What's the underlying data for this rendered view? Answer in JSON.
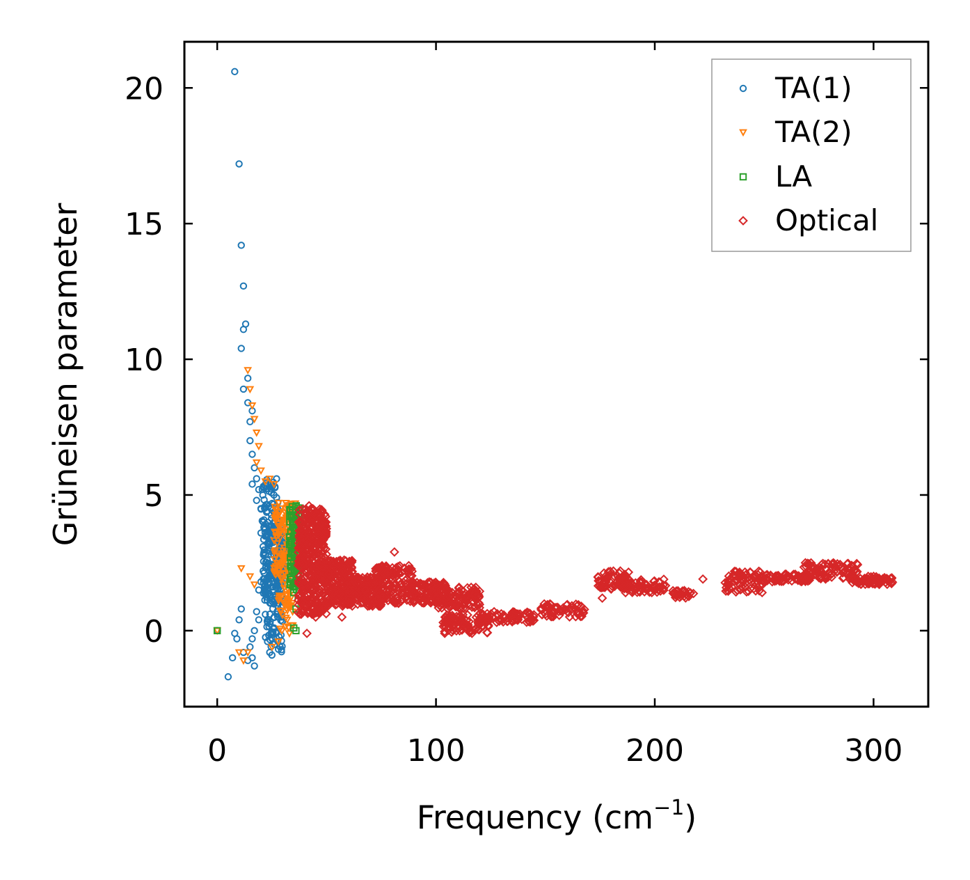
{
  "chart_data": {
    "type": "scatter",
    "title": "",
    "xlabel_main": "Frequency (cm",
    "xlabel_sup": "−1",
    "xlabel_end": ")",
    "ylabel": "Grüneisen parameter",
    "xlim": [
      -15,
      325
    ],
    "ylim": [
      -2.8,
      21.7
    ],
    "x_ticks": [
      0,
      100,
      200,
      300
    ],
    "y_ticks": [
      0,
      5,
      10,
      15,
      20
    ],
    "x_tick_labels": [
      "0",
      "100",
      "200",
      "300"
    ],
    "y_tick_labels": [
      "0",
      "5",
      "10",
      "15",
      "20"
    ],
    "legend_position": "top-right",
    "series": [
      {
        "name": "TA(1)",
        "color": "#1f77b4",
        "marker": "circle",
        "points": [
          [
            0,
            0
          ],
          [
            5,
            -1.7
          ],
          [
            8,
            20.6
          ],
          [
            10,
            17.2
          ],
          [
            11,
            14.2
          ],
          [
            12,
            12.7
          ],
          [
            13,
            11.3
          ],
          [
            12,
            11.1
          ],
          [
            11,
            10.4
          ],
          [
            12,
            8.9
          ],
          [
            14,
            9.3
          ],
          [
            14,
            8.4
          ],
          [
            15,
            7.7
          ],
          [
            16,
            8.1
          ],
          [
            15,
            7.0
          ],
          [
            16,
            6.5
          ],
          [
            17,
            6.0
          ],
          [
            16,
            5.4
          ],
          [
            18,
            5.6
          ],
          [
            19,
            5.2
          ],
          [
            18,
            4.8
          ],
          [
            20,
            4.5
          ],
          [
            21,
            4.0
          ],
          [
            20,
            3.6
          ],
          [
            21,
            3.1
          ],
          [
            22,
            2.8
          ],
          [
            21,
            2.2
          ],
          [
            20,
            1.8
          ],
          [
            19,
            1.5
          ],
          [
            18,
            0.7
          ],
          [
            19,
            0.4
          ],
          [
            17,
            0.0
          ],
          [
            16,
            -0.3
          ],
          [
            15,
            -0.6
          ],
          [
            16,
            -1.0
          ],
          [
            17,
            -1.3
          ],
          [
            14,
            -1.1
          ],
          [
            12,
            -0.8
          ],
          [
            9,
            -0.3
          ],
          [
            7,
            -1.0
          ],
          [
            8,
            -0.1
          ],
          [
            10,
            0.4
          ],
          [
            11,
            0.8
          ],
          [
            22,
            0.6
          ],
          [
            23,
            0.3
          ],
          [
            23,
            -0.4
          ],
          [
            24,
            -0.8
          ],
          [
            25,
            -0.9
          ],
          [
            26,
            0.1
          ],
          [
            26,
            0.5
          ]
        ],
        "dense_regions": [
          {
            "x": [
              21,
              31
            ],
            "y": [
              1.0,
              3.8
            ],
            "n": 220
          },
          {
            "x": [
              20,
              28
            ],
            "y": [
              3.8,
              5.6
            ],
            "n": 60
          },
          {
            "x": [
              22,
              30
            ],
            "y": [
              -0.8,
              1.0
            ],
            "n": 50
          }
        ]
      },
      {
        "name": "TA(2)",
        "color": "#ff7f0e",
        "marker": "triangle-down",
        "points": [
          [
            0,
            0
          ],
          [
            14,
            9.6
          ],
          [
            15,
            8.9
          ],
          [
            16,
            8.3
          ],
          [
            17,
            7.8
          ],
          [
            18,
            7.3
          ],
          [
            19,
            6.8
          ],
          [
            18,
            6.2
          ],
          [
            20,
            5.9
          ],
          [
            22,
            5.5
          ],
          [
            24,
            5.6
          ],
          [
            26,
            5.4
          ],
          [
            11,
            2.3
          ],
          [
            15,
            2.0
          ],
          [
            17,
            1.7
          ],
          [
            10,
            -0.8
          ],
          [
            12,
            -1.1
          ],
          [
            14,
            -0.8
          ],
          [
            25,
            -0.6
          ],
          [
            28,
            -0.4
          ],
          [
            33,
            -0.1
          ],
          [
            34,
            0.2
          ]
        ],
        "dense_regions": [
          {
            "x": [
              26,
              36
            ],
            "y": [
              2.0,
              4.8
            ],
            "n": 140
          },
          {
            "x": [
              28,
              35
            ],
            "y": [
              0.0,
              2.0
            ],
            "n": 40
          }
        ]
      },
      {
        "name": "LA",
        "color": "#2ca02c",
        "marker": "square",
        "points": [
          [
            0,
            0
          ],
          [
            35,
            0.1
          ],
          [
            36,
            0.0
          ],
          [
            36,
            0.8
          ],
          [
            35,
            1.4
          ],
          [
            37,
            1.3
          ]
        ],
        "dense_regions": [
          {
            "x": [
              33,
              38
            ],
            "y": [
              1.5,
              4.7
            ],
            "n": 110
          }
        ]
      },
      {
        "name": "Optical",
        "color": "#d62728",
        "marker": "diamond",
        "points": [
          [
            81,
            2.9
          ],
          [
            104,
            -0.1
          ],
          [
            176,
            1.2
          ],
          [
            222,
            1.9
          ],
          [
            247,
            1.6
          ],
          [
            289,
            1.9
          ],
          [
            41,
            -0.1
          ],
          [
            45,
            0.5
          ],
          [
            42,
            4.6
          ],
          [
            57,
            0.5
          ]
        ],
        "dense_regions": [
          {
            "x": [
              37,
              50
            ],
            "y": [
              0.6,
              4.5
            ],
            "n": 450
          },
          {
            "x": [
              50,
              62
            ],
            "y": [
              0.9,
              2.6
            ],
            "n": 220
          },
          {
            "x": [
              60,
              75
            ],
            "y": [
              0.9,
              2.0
            ],
            "n": 150
          },
          {
            "x": [
              72,
              90
            ],
            "y": [
              1.0,
              2.4
            ],
            "n": 160
          },
          {
            "x": [
              88,
              105
            ],
            "y": [
              1.0,
              1.8
            ],
            "n": 110
          },
          {
            "x": [
              100,
              120
            ],
            "y": [
              0.8,
              1.6
            ],
            "n": 110
          },
          {
            "x": [
              103,
              125
            ],
            "y": [
              -0.1,
              0.6
            ],
            "n": 90
          },
          {
            "x": [
              120,
              145
            ],
            "y": [
              0.3,
              0.7
            ],
            "n": 80
          },
          {
            "x": [
              148,
              168
            ],
            "y": [
              0.5,
              1.0
            ],
            "n": 60
          },
          {
            "x": [
              174,
              188
            ],
            "y": [
              1.5,
              2.2
            ],
            "n": 70
          },
          {
            "x": [
              186,
              205
            ],
            "y": [
              1.4,
              1.9
            ],
            "n": 60
          },
          {
            "x": [
              208,
              218
            ],
            "y": [
              1.2,
              1.5
            ],
            "n": 30
          },
          {
            "x": [
              232,
              250
            ],
            "y": [
              1.4,
              2.2
            ],
            "n": 80
          },
          {
            "x": [
              250,
              272
            ],
            "y": [
              1.8,
              2.1
            ],
            "n": 70
          },
          {
            "x": [
              268,
              293
            ],
            "y": [
              1.9,
              2.5
            ],
            "n": 90
          },
          {
            "x": [
              290,
              309
            ],
            "y": [
              1.7,
              2.0
            ],
            "n": 70
          }
        ]
      }
    ]
  }
}
